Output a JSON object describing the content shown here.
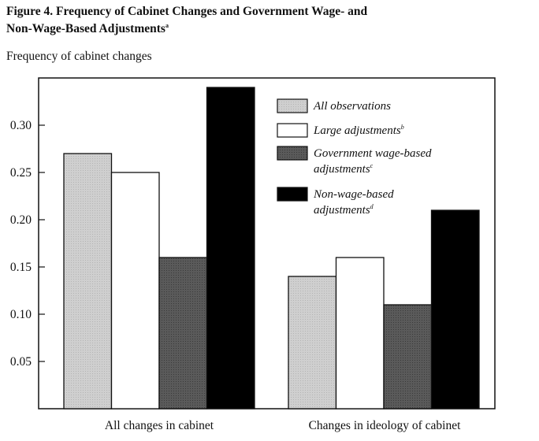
{
  "figure": {
    "title_line1": "Figure 4. Frequency of Cabinet Changes and Government Wage- and",
    "title_line2": "Non-Wage-Based Adjustments",
    "title_note": "a"
  },
  "chart_data": {
    "type": "bar",
    "title": "Figure 4. Frequency of Cabinet Changes and Government Wage- and Non-Wage-Based Adjustments",
    "ylabel": "Frequency of cabinet changes",
    "xlabel": "",
    "ylim": [
      0,
      0.35
    ],
    "yticks": [
      "0.05",
      "0.10",
      "0.15",
      "0.20",
      "0.25",
      "0.30"
    ],
    "grid": false,
    "legend_position": "top-right",
    "categories": [
      "All changes in cabinet",
      "Changes in ideology of cabinet"
    ],
    "series": [
      {
        "name": "All observations",
        "note": "",
        "color": "#c8c8c8",
        "values": [
          0.27,
          0.14
        ]
      },
      {
        "name": "Large adjustments",
        "note": "b",
        "color": "#ffffff",
        "values": [
          0.25,
          0.16
        ]
      },
      {
        "name": "Government wage-based adjustments",
        "legend_lines": [
          "Government wage-based",
          "adjustments"
        ],
        "note": "c",
        "color": "#555555",
        "values": [
          0.16,
          0.11
        ]
      },
      {
        "name": "Non-wage-based adjustments",
        "legend_lines": [
          "Non-wage-based",
          "adjustments"
        ],
        "note": "d",
        "color": "#000000",
        "values": [
          0.34,
          0.21
        ]
      }
    ]
  }
}
